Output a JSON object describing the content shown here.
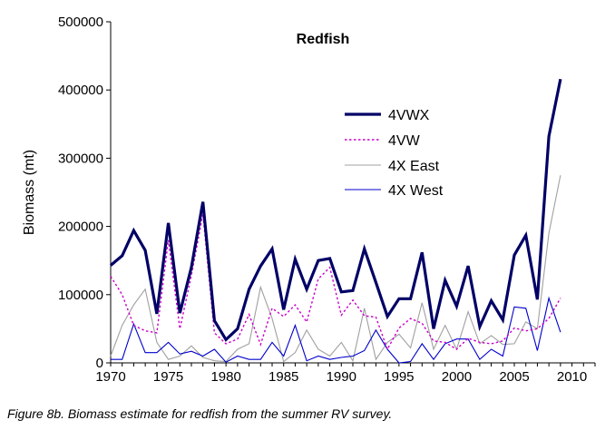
{
  "caption": "Figure 8b. Biomass estimate for redfish from the summer RV survey.",
  "chart_data": {
    "type": "line",
    "title": "Redfish",
    "xlabel": "",
    "ylabel": "Biomass (mt)",
    "xlim": [
      1970,
      2012
    ],
    "ylim": [
      0,
      500000
    ],
    "xticks": [
      1970,
      1975,
      1980,
      1985,
      1990,
      1995,
      2000,
      2005,
      2010
    ],
    "yticks": [
      0,
      100000,
      200000,
      300000,
      400000,
      500000
    ],
    "ytick_labels": [
      "0",
      "100000",
      "200000",
      "300000",
      "400000",
      "500000"
    ],
    "grid": false,
    "legend_position": "center-right",
    "x": [
      1970,
      1971,
      1972,
      1973,
      1974,
      1975,
      1976,
      1977,
      1978,
      1979,
      1980,
      1981,
      1982,
      1983,
      1984,
      1985,
      1986,
      1987,
      1988,
      1989,
      1990,
      1991,
      1992,
      1993,
      1994,
      1995,
      1996,
      1997,
      1998,
      1999,
      2000,
      2001,
      2002,
      2003,
      2004,
      2005,
      2006,
      2007,
      2008,
      2009
    ],
    "series": [
      {
        "name": "4VWX",
        "color": "#000066",
        "style": "thick",
        "values": [
          143000,
          157000,
          194000,
          165000,
          72000,
          205000,
          73000,
          140000,
          236000,
          62000,
          34000,
          50000,
          108000,
          142000,
          167000,
          78000,
          152000,
          108000,
          150000,
          153000,
          104000,
          106000,
          167000,
          118000,
          68000,
          94000,
          94000,
          162000,
          50000,
          121000,
          83000,
          142000,
          53000,
          91000,
          63000,
          158000,
          187000,
          93000,
          332000,
          416000
        ]
      },
      {
        "name": "4VW",
        "color": "#cc00cc",
        "style": "dotted",
        "values": [
          127000,
          100000,
          55000,
          47000,
          44000,
          180000,
          50000,
          128000,
          218000,
          44000,
          28000,
          35000,
          71000,
          27000,
          80000,
          68000,
          85000,
          60000,
          123000,
          140000,
          70000,
          92000,
          69000,
          67000,
          20000,
          51000,
          65000,
          58000,
          32000,
          30000,
          20000,
          36000,
          30000,
          28000,
          32000,
          51000,
          47000,
          50000,
          65000,
          95000
        ]
      },
      {
        "name": "4X East",
        "color": "#a0a0a0",
        "style": "thin",
        "values": [
          10000,
          55000,
          85000,
          108000,
          30000,
          5000,
          10000,
          25000,
          8000,
          3000,
          2000,
          20000,
          28000,
          111000,
          65000,
          2000,
          15000,
          48000,
          20000,
          10000,
          30000,
          3000,
          80000,
          5000,
          30000,
          42000,
          22000,
          88000,
          20000,
          55000,
          20000,
          75000,
          28000,
          40000,
          27000,
          28000,
          60000,
          50000,
          190000,
          275000
        ]
      },
      {
        "name": "4X West",
        "color": "#0000cc",
        "style": "thin",
        "values": [
          5000,
          5000,
          57000,
          15000,
          15000,
          30000,
          13000,
          17000,
          10000,
          20000,
          1000,
          10000,
          5000,
          5000,
          30000,
          10000,
          55000,
          3000,
          10000,
          5000,
          8000,
          10000,
          18000,
          48000,
          20000,
          0,
          2000,
          28000,
          5000,
          28000,
          35000,
          35000,
          5000,
          20000,
          10000,
          82000,
          80000,
          18000,
          95000,
          45000
        ]
      }
    ]
  }
}
